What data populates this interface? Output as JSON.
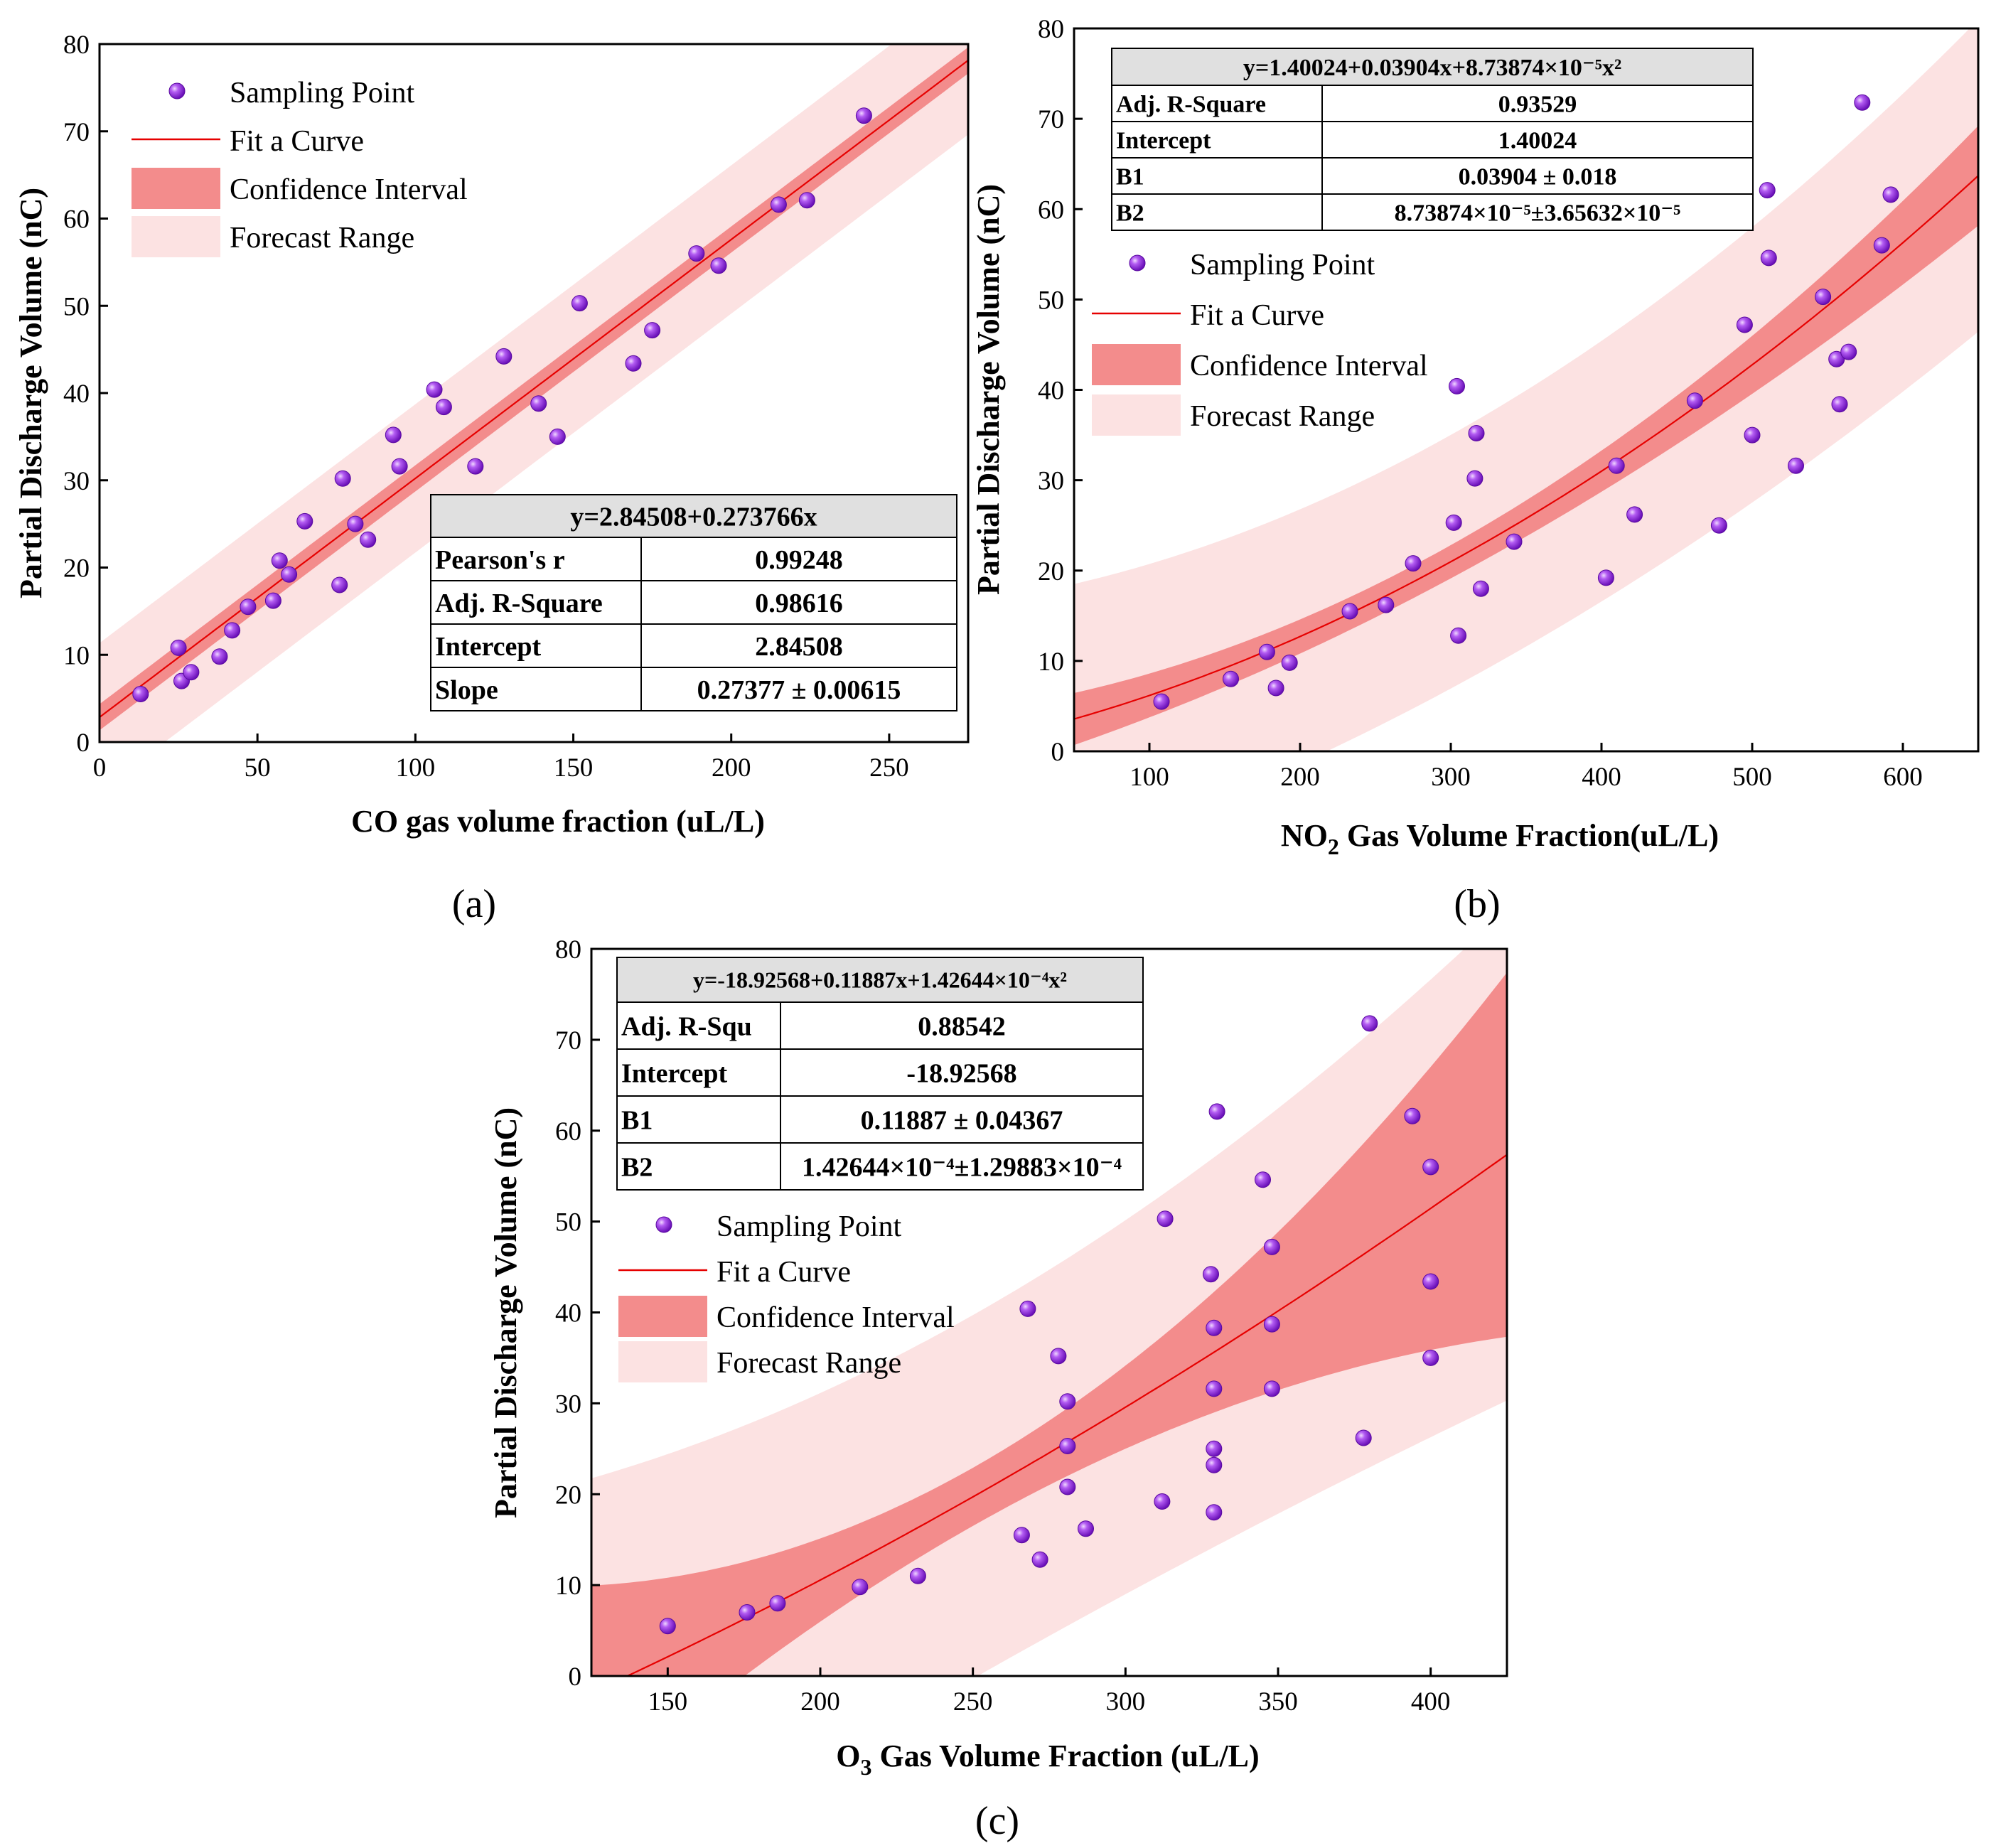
{
  "colors": {
    "point": "#8a1fe0",
    "fit_line": "#e60000",
    "confidence": "#f38c8c",
    "forecast": "#fce2e2",
    "table_header": "#e0e0e0"
  },
  "chart_data": [
    {
      "id": "a",
      "type": "scatter",
      "panel_label": "(a)",
      "xlabel": "CO gas volume fraction (uL/L)",
      "ylabel": "Partial Discharge Volume (nC)",
      "xlim": [
        0,
        275
      ],
      "ylim": [
        0,
        80
      ],
      "xticks": [
        0,
        50,
        100,
        150,
        200,
        250
      ],
      "yticks": [
        0,
        10,
        20,
        30,
        40,
        50,
        60,
        70,
        80
      ],
      "legend": [
        "Sampling Point",
        "Fit a Curve",
        "Confidence Interval",
        "Forecast Range"
      ],
      "fit": {
        "model": "linear",
        "intercept": 2.84508,
        "b1": 0.273766,
        "b2": 0
      },
      "band": {
        "ci_half": 1.5,
        "ci_growth": 1.1e-07,
        "ci_center": 120,
        "pi_half": 8.5,
        "pi_growth": 0
      },
      "points": [
        [
          13,
          5.5
        ],
        [
          25,
          10.8
        ],
        [
          26,
          7
        ],
        [
          29,
          8
        ],
        [
          38,
          9.8
        ],
        [
          42,
          12.8
        ],
        [
          47,
          15.5
        ],
        [
          55,
          16.2
        ],
        [
          57,
          20.8
        ],
        [
          60,
          19.2
        ],
        [
          65,
          25.3
        ],
        [
          76,
          18
        ],
        [
          77,
          30.2
        ],
        [
          81,
          25
        ],
        [
          85,
          23.2
        ],
        [
          93,
          35.2
        ],
        [
          95,
          31.6
        ],
        [
          106,
          40.4
        ],
        [
          109,
          38.4
        ],
        [
          119,
          31.6
        ],
        [
          128,
          44.2
        ],
        [
          139,
          38.8
        ],
        [
          145,
          35
        ],
        [
          152,
          50.3
        ],
        [
          169,
          43.4
        ],
        [
          175,
          47.2
        ],
        [
          189,
          56
        ],
        [
          196,
          54.6
        ],
        [
          215,
          61.6
        ],
        [
          224,
          62.1
        ],
        [
          242,
          71.8
        ]
      ],
      "table": {
        "header": "y=2.84508+0.273766x",
        "rows": [
          [
            "Pearson's r",
            "0.99248"
          ],
          [
            "Adj. R-Square",
            "0.98616"
          ],
          [
            "Intercept",
            "2.84508"
          ],
          [
            "Slope",
            "0.27377 ± 0.00615"
          ]
        ]
      }
    },
    {
      "id": "b",
      "type": "scatter",
      "panel_label": "(b)",
      "xlabel_prefix": "NO",
      "xlabel_sub": "2",
      "xlabel_rest": " Gas Volume Fraction(uL/L)",
      "ylabel": "Partial Discharge Volume (nC)",
      "xlim": [
        50,
        650
      ],
      "ylim": [
        0,
        80
      ],
      "xticks": [
        100,
        200,
        300,
        400,
        500,
        600
      ],
      "yticks": [
        0,
        10,
        20,
        30,
        40,
        50,
        60,
        70,
        80
      ],
      "legend": [
        "Sampling Point",
        "Fit a Curve",
        "Confidence Interval",
        "Forecast Range"
      ],
      "fit": {
        "model": "quadratic",
        "intercept": 1.40024,
        "b1": 0.03904,
        "b2": 8.73874e-05
      },
      "band": {
        "ci_half": 1.8,
        "ci_growth": 2.45e-05,
        "ci_center": 260,
        "pi_half": 14,
        "pi_growth": 2.15e-05
      },
      "points": [
        [
          108,
          5.5
        ],
        [
          154,
          8
        ],
        [
          178,
          11
        ],
        [
          184,
          7
        ],
        [
          193,
          9.8
        ],
        [
          233,
          15.5
        ],
        [
          257,
          16.2
        ],
        [
          275,
          20.8
        ],
        [
          302,
          25.3
        ],
        [
          304,
          40.4
        ],
        [
          305,
          12.8
        ],
        [
          316,
          30.2
        ],
        [
          317,
          35.2
        ],
        [
          320,
          18
        ],
        [
          342,
          23.2
        ],
        [
          403,
          19.2
        ],
        [
          410,
          31.6
        ],
        [
          422,
          26.2
        ],
        [
          462,
          38.8
        ],
        [
          478,
          25
        ],
        [
          495,
          47.2
        ],
        [
          500,
          35
        ],
        [
          510,
          62.1
        ],
        [
          511,
          54.6
        ],
        [
          529,
          31.6
        ],
        [
          547,
          50.3
        ],
        [
          556,
          43.4
        ],
        [
          558,
          38.4
        ],
        [
          564,
          44.2
        ],
        [
          573,
          71.8
        ],
        [
          586,
          56
        ],
        [
          592,
          61.6
        ]
      ],
      "table": {
        "header": "y=1.40024+0.03904x+8.73874×10⁻⁵x²",
        "rows": [
          [
            "Adj. R-Square",
            "0.93529"
          ],
          [
            "Intercept",
            "1.40024"
          ],
          [
            "B1",
            "0.03904 ± 0.018"
          ],
          [
            "B2",
            "8.73874×10⁻⁵±3.65632×10⁻⁵"
          ]
        ]
      }
    },
    {
      "id": "c",
      "type": "scatter",
      "panel_label": "(c)",
      "xlabel_prefix": "O",
      "xlabel_sub": "3",
      "xlabel_rest": " Gas Volume Fraction (uL/L)",
      "ylabel": "Partial Discharge Volume (nC)",
      "xlim": [
        125,
        425
      ],
      "ylim": [
        0,
        80
      ],
      "xticks": [
        150,
        200,
        250,
        300,
        350,
        400
      ],
      "yticks": [
        0,
        10,
        20,
        30,
        40,
        50,
        60,
        70,
        80
      ],
      "legend": [
        "Sampling Point",
        "Fit a Curve",
        "Confidence Interval",
        "Forecast Range"
      ],
      "fit": {
        "model": "quadratic",
        "intercept": -18.92568,
        "b1": 0.11887,
        "b2": 0.000142644
      },
      "band": {
        "ci_half": 3.2,
        "ci_growth": 0.00055,
        "ci_center": 250,
        "pi_half": 20,
        "pi_growth": 0.00023
      },
      "points": [
        [
          150,
          5.5
        ],
        [
          176,
          7
        ],
        [
          186,
          8
        ],
        [
          213,
          9.8
        ],
        [
          232,
          11
        ],
        [
          266,
          15.5
        ],
        [
          268,
          40.4
        ],
        [
          272,
          12.8
        ],
        [
          278,
          35.2
        ],
        [
          281,
          30.2
        ],
        [
          281,
          25.3
        ],
        [
          281,
          20.8
        ],
        [
          287,
          16.2
        ],
        [
          312,
          19.2
        ],
        [
          313,
          50.3
        ],
        [
          328,
          44.2
        ],
        [
          329,
          38.3
        ],
        [
          329,
          31.6
        ],
        [
          329,
          25
        ],
        [
          329,
          23.2
        ],
        [
          329,
          18
        ],
        [
          330,
          62.1
        ],
        [
          345,
          54.6
        ],
        [
          348,
          47.2
        ],
        [
          348,
          38.7
        ],
        [
          348,
          31.6
        ],
        [
          378,
          26.2
        ],
        [
          380,
          71.8
        ],
        [
          394,
          61.6
        ],
        [
          400,
          56
        ],
        [
          400,
          43.4
        ],
        [
          400,
          35
        ]
      ],
      "table": {
        "header": "y=-18.92568+0.11887x+1.42644×10⁻⁴x²",
        "rows": [
          [
            "Adj. R-Squ",
            "0.88542"
          ],
          [
            "Intercept",
            "-18.92568"
          ],
          [
            "B1",
            "0.11887 ± 0.04367"
          ],
          [
            "B2",
            "1.42644×10⁻⁴±1.29883×10⁻⁴"
          ]
        ]
      }
    }
  ]
}
